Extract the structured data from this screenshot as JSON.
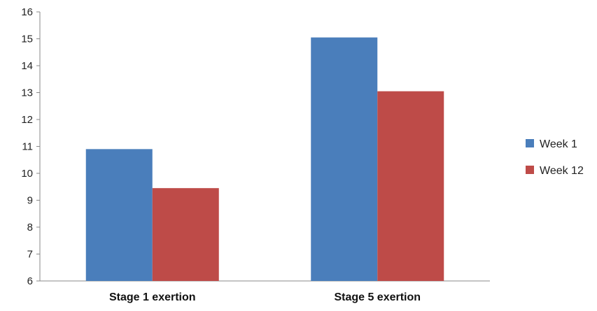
{
  "chart_data": {
    "type": "bar",
    "categories": [
      "Stage 1 exertion",
      "Stage 5 exertion"
    ],
    "series": [
      {
        "name": "Week 1",
        "values": [
          10.9,
          15.05
        ],
        "color": "#4a7ebb"
      },
      {
        "name": "Week 12",
        "values": [
          9.45,
          13.05
        ],
        "color": "#be4b48"
      }
    ],
    "ylim": [
      6,
      16
    ],
    "yticks": [
      "6",
      "7",
      "8",
      "9",
      "10",
      "11",
      "12",
      "13",
      "14",
      "15",
      "16"
    ],
    "grid": false,
    "legend_position": "right"
  }
}
